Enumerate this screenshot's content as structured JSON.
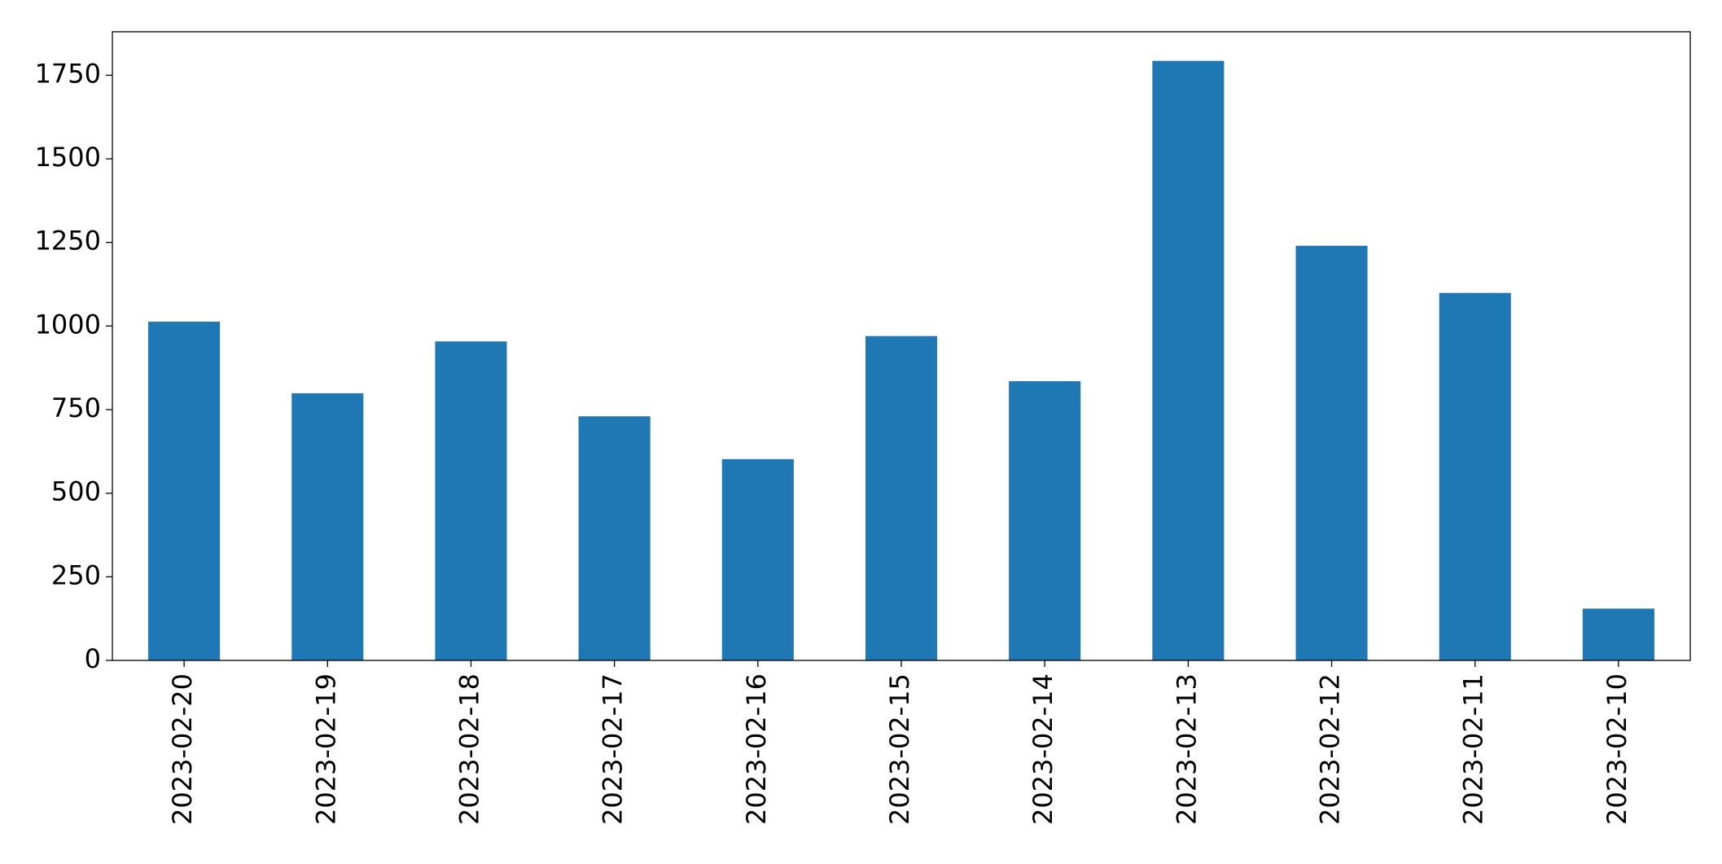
{
  "chart_data": {
    "type": "bar",
    "categories": [
      "2023-02-20",
      "2023-02-19",
      "2023-02-18",
      "2023-02-17",
      "2023-02-16",
      "2023-02-15",
      "2023-02-14",
      "2023-02-13",
      "2023-02-12",
      "2023-02-11",
      "2023-02-10"
    ],
    "values": [
      1013,
      799,
      954,
      730,
      602,
      970,
      835,
      1793,
      1240,
      1099,
      155
    ],
    "color": "#1f77b4",
    "ylim": [
      0,
      1880
    ],
    "yticks": [
      0,
      250,
      500,
      750,
      1000,
      1250,
      1500,
      1750
    ],
    "grid": false
  }
}
